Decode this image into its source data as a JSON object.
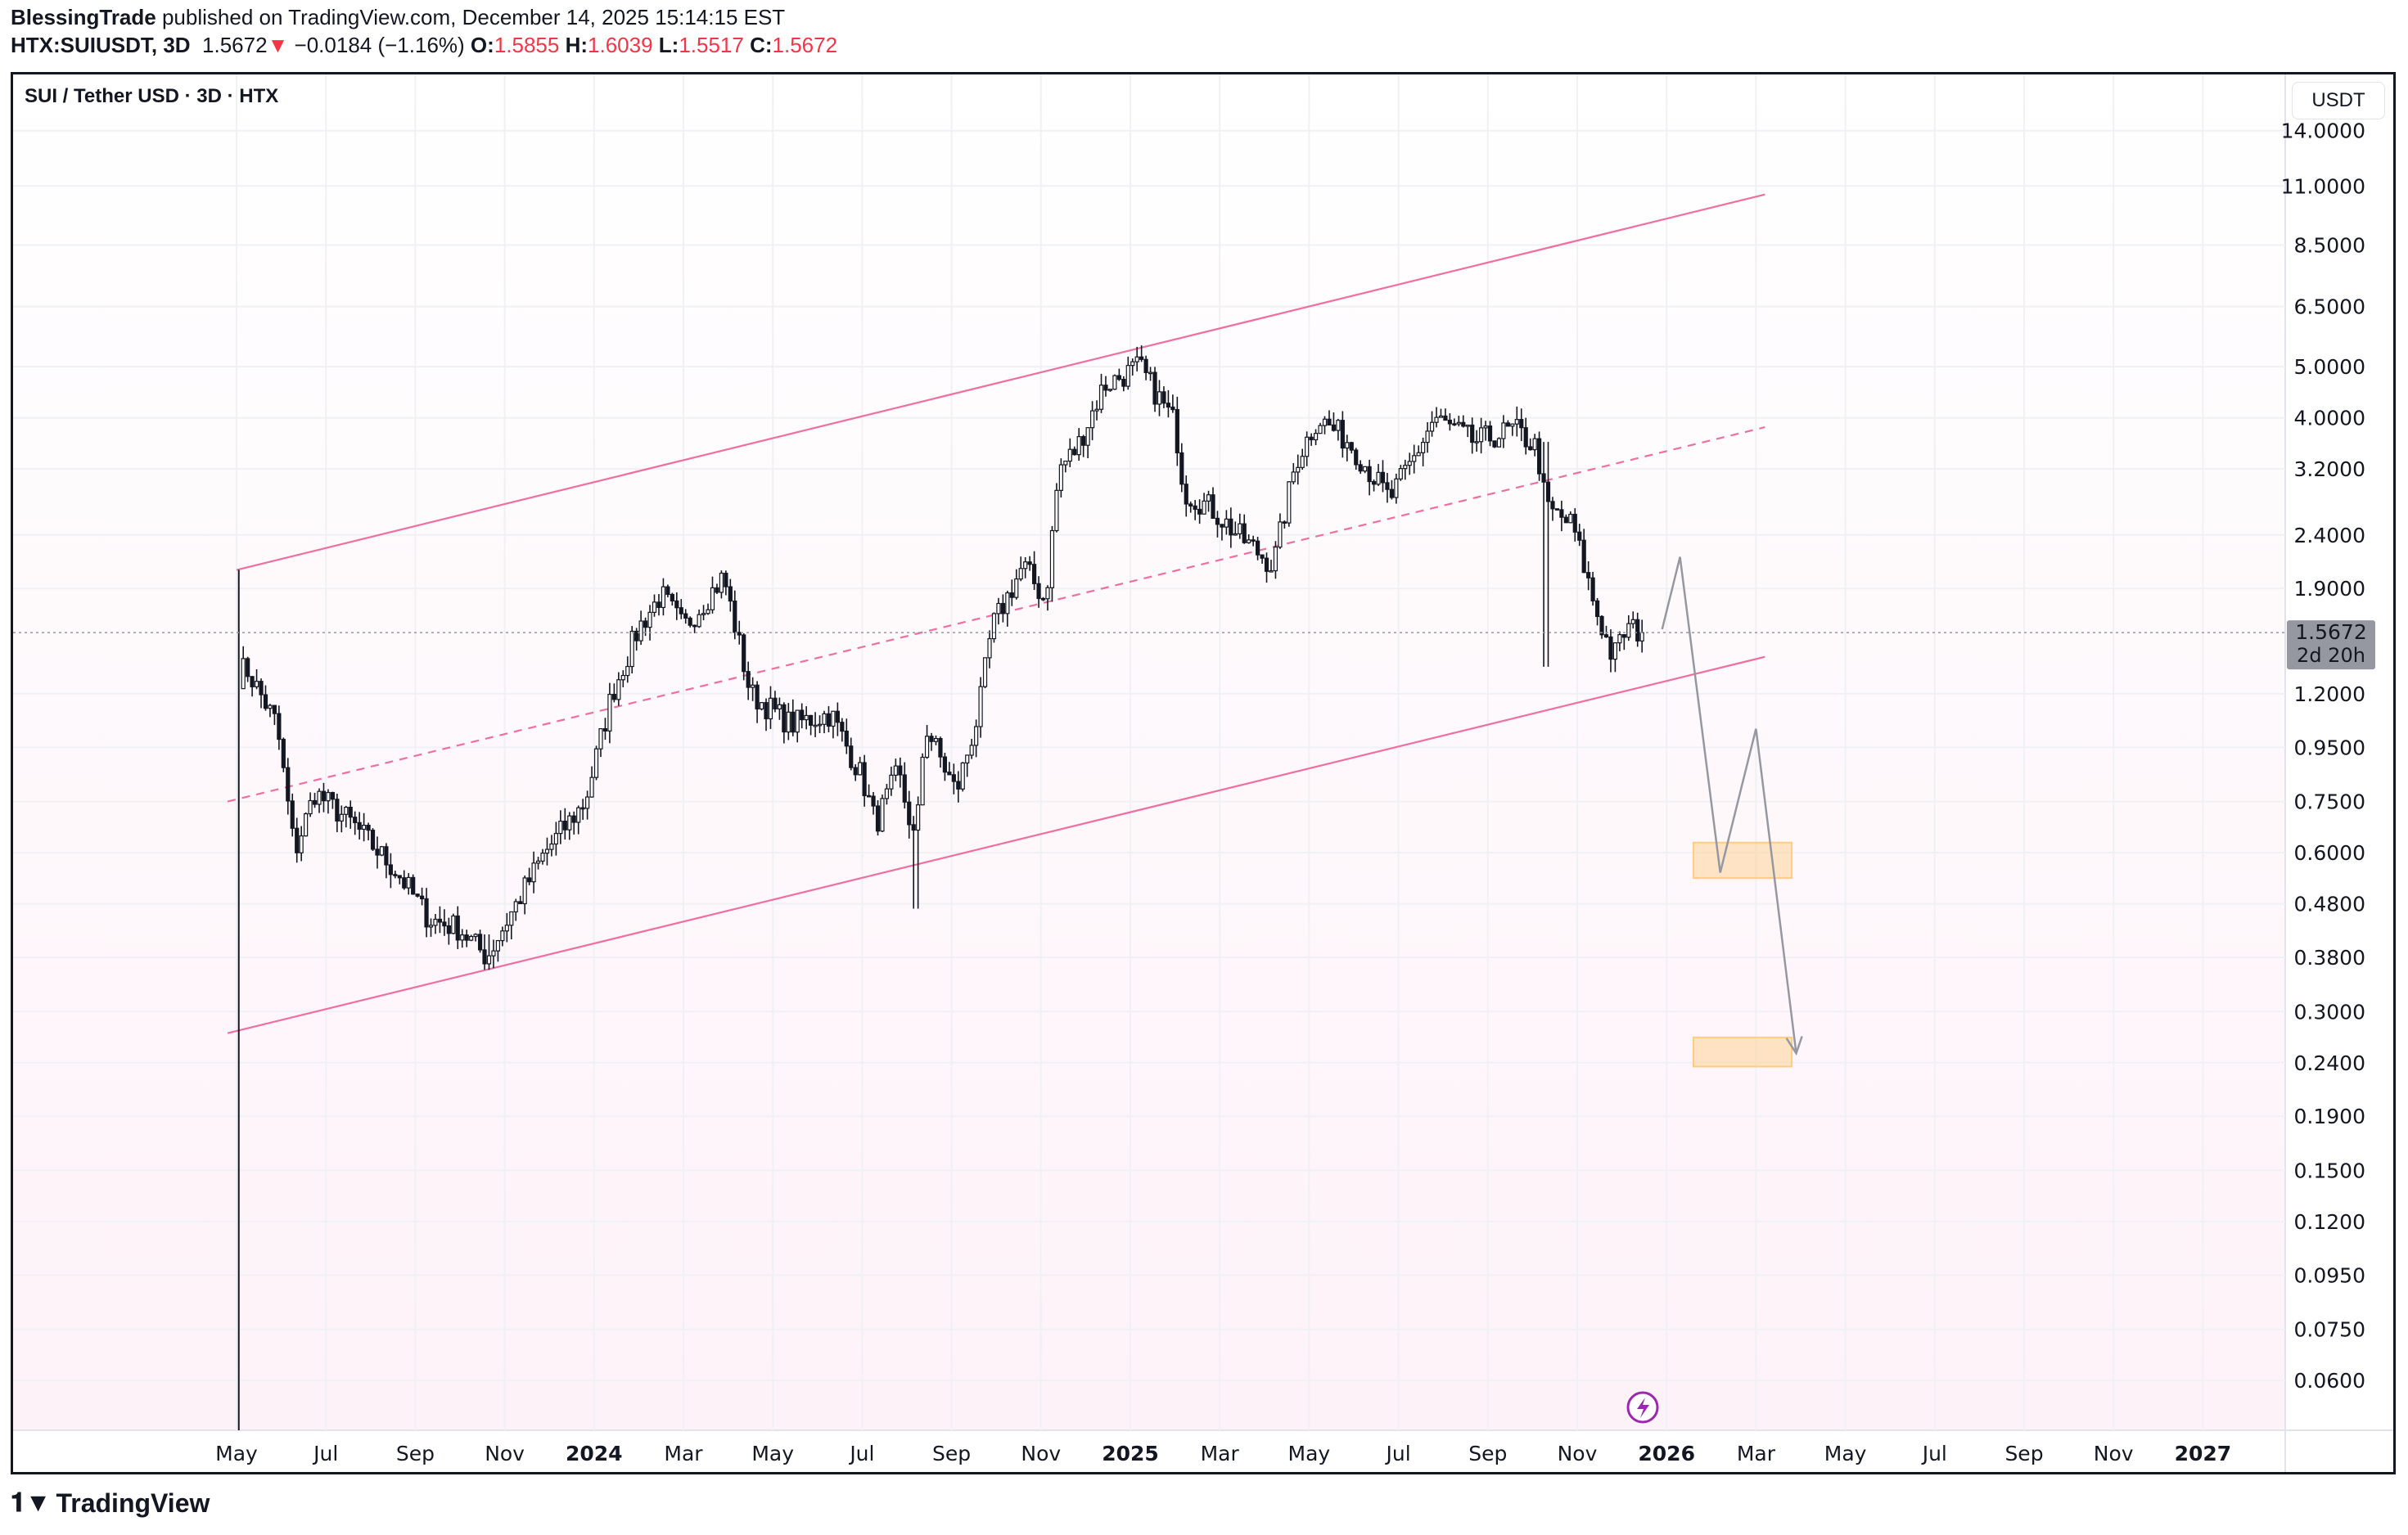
{
  "header": {
    "author": "BlessingTrade",
    "published_text": "published on TradingView.com, December 14, 2025 15:14:15 EST",
    "symbol": "HTX:SUIUSDT, 3D",
    "last": "1.5672",
    "change": "−0.0184 (−1.16%)",
    "o_label": "O:",
    "o": "1.5855",
    "h_label": "H:",
    "h": "1.6039",
    "l_label": "L:",
    "l": "1.5517",
    "c_label": "C:",
    "c": "1.5672"
  },
  "legend": "SUI / Tether USD · 3D · HTX",
  "unit_button": "USDT",
  "footer": {
    "logo": "TradingView"
  },
  "colors": {
    "channel": "#f06fa0",
    "projection": "#9598a1",
    "zone": "#ffcc80",
    "down": "#f23645",
    "price_label_bg": "#9598a1"
  },
  "chart_data": {
    "type": "candlestick",
    "scale": "log",
    "y_ticks": [
      "14.0000",
      "11.0000",
      "8.5000",
      "6.5000",
      "5.0000",
      "4.0000",
      "3.2000",
      "2.4000",
      "1.9000",
      "1.2000",
      "0.9500",
      "0.7500",
      "0.6000",
      "0.4800",
      "0.3800",
      "0.3000",
      "0.2400",
      "0.1900",
      "0.1500",
      "0.1200",
      "0.0950",
      "0.0750",
      "0.0600"
    ],
    "x_ticks": [
      {
        "label": "May",
        "m": 0
      },
      {
        "label": "Jul",
        "m": 2
      },
      {
        "label": "Sep",
        "m": 4
      },
      {
        "label": "Nov",
        "m": 6
      },
      {
        "label": "2024",
        "m": 8,
        "bold": true
      },
      {
        "label": "Mar",
        "m": 10
      },
      {
        "label": "May",
        "m": 12
      },
      {
        "label": "Jul",
        "m": 14
      },
      {
        "label": "Sep",
        "m": 16
      },
      {
        "label": "Nov",
        "m": 18
      },
      {
        "label": "2025",
        "m": 20,
        "bold": true
      },
      {
        "label": "Mar",
        "m": 22
      },
      {
        "label": "May",
        "m": 24
      },
      {
        "label": "Jul",
        "m": 26
      },
      {
        "label": "Sep",
        "m": 28
      },
      {
        "label": "Nov",
        "m": 30
      },
      {
        "label": "2026",
        "m": 32,
        "bold": true
      },
      {
        "label": "Mar",
        "m": 34
      },
      {
        "label": "May",
        "m": 36
      },
      {
        "label": "Jul",
        "m": 38
      },
      {
        "label": "Sep",
        "m": 40
      },
      {
        "label": "Nov",
        "m": 42
      },
      {
        "label": "2027",
        "m": 44,
        "bold": true
      }
    ],
    "x_unit": "months since May 2023",
    "price_path": [
      [
        0.05,
        1.3
      ],
      [
        0.2,
        1.35
      ],
      [
        0.9,
        1.05
      ],
      [
        1.3,
        0.6
      ],
      [
        1.75,
        0.78
      ],
      [
        2.6,
        0.68
      ],
      [
        3.6,
        0.55
      ],
      [
        4.3,
        0.45
      ],
      [
        5.0,
        0.43
      ],
      [
        5.6,
        0.38
      ],
      [
        6.2,
        0.47
      ],
      [
        6.9,
        0.6
      ],
      [
        7.8,
        0.75
      ],
      [
        8.4,
        1.2
      ],
      [
        9.0,
        1.6
      ],
      [
        9.5,
        1.85
      ],
      [
        10.0,
        1.6
      ],
      [
        10.9,
        2.0
      ],
      [
        11.5,
        1.2
      ],
      [
        12.4,
        1.05
      ],
      [
        13.3,
        1.1
      ],
      [
        14.0,
        0.83
      ],
      [
        14.3,
        0.68
      ],
      [
        14.8,
        0.85
      ],
      [
        15.2,
        0.62
      ],
      [
        15.4,
        1.05
      ],
      [
        16.1,
        0.78
      ],
      [
        16.6,
        1.1
      ],
      [
        16.9,
        1.6
      ],
      [
        17.6,
        2.1
      ],
      [
        18.1,
        1.8
      ],
      [
        18.4,
        3.2
      ],
      [
        18.8,
        3.5
      ],
      [
        19.4,
        4.6
      ],
      [
        20.2,
        5.0
      ],
      [
        21.0,
        3.9
      ],
      [
        21.2,
        2.9
      ],
      [
        21.8,
        2.7
      ],
      [
        22.4,
        2.4
      ],
      [
        23.2,
        2.1
      ],
      [
        23.7,
        3.3
      ],
      [
        24.2,
        4.0
      ],
      [
        24.9,
        3.6
      ],
      [
        25.8,
        2.8
      ],
      [
        26.3,
        3.3
      ],
      [
        26.8,
        4.0
      ],
      [
        27.7,
        3.6
      ],
      [
        28.6,
        3.8
      ],
      [
        29.1,
        3.5
      ],
      [
        29.3,
        2.7
      ],
      [
        29.9,
        2.5
      ],
      [
        30.4,
        1.75
      ],
      [
        30.8,
        1.4
      ],
      [
        31.1,
        1.6
      ],
      [
        31.5,
        1.5672
      ]
    ],
    "wicks": [
      {
        "m": 0.05,
        "high": 2.06,
        "low": 0.05
      },
      {
        "m": 15.2,
        "high": 0.7,
        "low": 0.47
      },
      {
        "m": 29.3,
        "high": 3.6,
        "low": 1.35
      },
      {
        "m": 5.6,
        "high": 0.42,
        "low": 0.36
      }
    ],
    "last_price": 1.5672,
    "last_price_label": "1.5672",
    "countdown": "2d 20h",
    "channel": {
      "upper": [
        [
          0,
          2.06
        ],
        [
          34.2,
          10.6
        ]
      ],
      "middle_dashed": [
        [
          -0.2,
          0.75
        ],
        [
          34.2,
          3.84
        ]
      ],
      "lower": [
        [
          -0.2,
          0.273
        ],
        [
          34.2,
          1.41
        ]
      ]
    },
    "projection": [
      [
        31.9,
        1.59
      ],
      [
        32.3,
        2.18
      ],
      [
        33.2,
        0.55
      ],
      [
        34.0,
        1.03
      ],
      [
        34.9,
        0.25
      ]
    ],
    "zones": [
      {
        "m0": 32.6,
        "m1": 34.8,
        "low": 0.537,
        "high": 0.627
      },
      {
        "m0": 32.6,
        "m1": 34.8,
        "low": 0.236,
        "high": 0.268
      }
    ]
  }
}
